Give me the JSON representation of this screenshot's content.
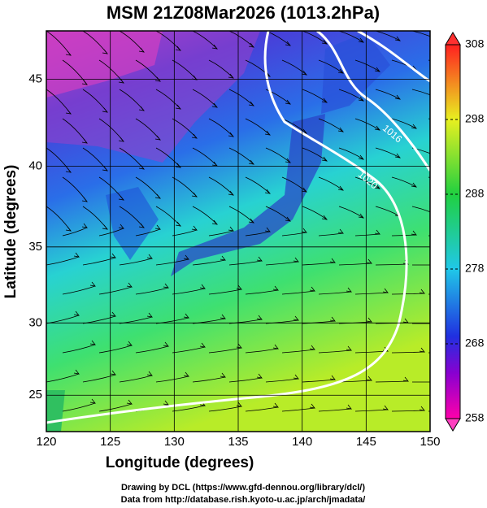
{
  "map": {
    "title": "MSM 21Z08Mar2026 (1013.2hPa)",
    "x_label": "Longitude (degrees)",
    "y_label": "Latitude  (degrees)",
    "xlim": [
      120,
      150
    ],
    "ylim": [
      22.4,
      47.6
    ],
    "xticks": [
      120,
      125,
      130,
      135,
      140,
      145,
      150
    ],
    "yticks": [
      25,
      30,
      35,
      40,
      45
    ],
    "colorbar": {
      "lim": [
        258,
        308
      ],
      "ticks": [
        258,
        268,
        278,
        288,
        298,
        308
      ]
    },
    "contour_labels": [
      "1016",
      "1020"
    ],
    "footer": [
      "Drawing by DCL (https://www.gfd-dennou.org/library/dcl/)",
      "Data from http://database.rish.kyoto-u.ac.jp/arch/jmadata/"
    ]
  }
}
